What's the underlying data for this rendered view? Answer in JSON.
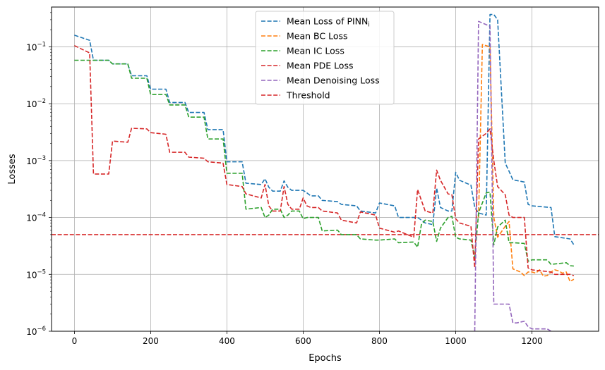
{
  "chart_data": {
    "type": "line",
    "title": "",
    "xlabel": "Epochs",
    "ylabel": "Losses",
    "xlim": [
      -60,
      1375
    ],
    "ylim": [
      1e-06,
      0.5
    ],
    "yscale": "log",
    "grid": true,
    "legend": {
      "placement": "upper-center",
      "entries": [
        {
          "text": "Mean Loss of PINN",
          "subscript": "i"
        },
        {
          "text": "Mean BC Loss",
          "subscript": ""
        },
        {
          "text": "Mean IC Loss",
          "subscript": ""
        },
        {
          "text": "Mean PDE Loss",
          "subscript": ""
        },
        {
          "text": "Mean Denoising Loss",
          "subscript": ""
        },
        {
          "text": "Threshold",
          "subscript": ""
        }
      ]
    },
    "x_ticks": [
      0,
      200,
      400,
      600,
      800,
      1000,
      1200
    ],
    "x_tick_labels": [
      "0",
      "200",
      "400",
      "600",
      "800",
      "1000",
      "1200"
    ],
    "y_ticks": [
      {
        "value": 1e-06,
        "base": "10",
        "exp": "−6"
      },
      {
        "value": 1e-05,
        "base": "10",
        "exp": "−5"
      },
      {
        "value": 0.0001,
        "base": "10",
        "exp": "−4"
      },
      {
        "value": 0.001,
        "base": "10",
        "exp": "−3"
      },
      {
        "value": 0.01,
        "base": "10",
        "exp": "−2"
      },
      {
        "value": 0.1,
        "base": "10",
        "exp": "−1"
      }
    ],
    "series": [
      {
        "name": "Mean Loss of PINN_i",
        "color": "#1f77b4",
        "x": [
          0,
          40,
          50,
          90,
          100,
          140,
          150,
          190,
          200,
          240,
          250,
          290,
          300,
          340,
          350,
          390,
          400,
          440,
          450,
          490,
          500,
          510,
          520,
          540,
          550,
          560,
          570,
          590,
          600,
          610,
          620,
          640,
          650,
          690,
          700,
          740,
          750,
          790,
          800,
          840,
          850,
          890,
          900,
          910,
          920,
          940,
          950,
          960,
          980,
          990,
          1000,
          1010,
          1040,
          1050,
          1060,
          1080,
          1090,
          1100,
          1110,
          1130,
          1140,
          1150,
          1180,
          1190,
          1200,
          1250,
          1260,
          1300,
          1310
        ],
        "y": [
          0.16,
          0.13,
          0.058,
          0.058,
          0.05,
          0.05,
          0.031,
          0.031,
          0.018,
          0.018,
          0.0105,
          0.0105,
          0.007,
          0.007,
          0.0035,
          0.0035,
          0.00095,
          0.00095,
          0.0004,
          0.00038,
          0.00048,
          0.00034,
          0.00029,
          0.00029,
          0.00044,
          0.00034,
          0.0003,
          0.0003,
          0.0003,
          0.00027,
          0.00024,
          0.00024,
          0.0002,
          0.00019,
          0.00017,
          0.00016,
          0.00013,
          0.00012,
          0.00018,
          0.00016,
          0.0001,
          0.0001,
          0.0001,
          9e-05,
          8e-05,
          7.5e-05,
          0.00033,
          0.00015,
          0.00013,
          0.00013,
          0.00062,
          0.00045,
          0.00037,
          0.00015,
          0.00012,
          0.00011,
          0.37,
          0.37,
          0.3,
          0.0009,
          0.00065,
          0.00046,
          0.00042,
          0.00017,
          0.00016,
          0.00015,
          4.6e-05,
          4.2e-05,
          3.3e-05
        ]
      },
      {
        "name": "Mean BC Loss",
        "color": "#ff7f0e",
        "x": [
          1060,
          1070,
          1090,
          1100,
          1110,
          1130,
          1140,
          1150,
          1170,
          1180,
          1190,
          1200,
          1210,
          1220,
          1230,
          1240,
          1250,
          1260,
          1270,
          1280,
          1290,
          1300,
          1310
        ],
        "y": [
          0.0001,
          0.11,
          0.1,
          0.0001,
          4.5e-05,
          7e-05,
          8.5e-05,
          1.25e-05,
          1.1e-05,
          9.5e-06,
          1.1e-05,
          1.1e-05,
          1.05e-05,
          1.2e-05,
          9.3e-06,
          9.5e-06,
          1.1e-05,
          1.2e-05,
          1.15e-05,
          1.05e-05,
          1.1e-05,
          7.5e-06,
          8.2e-06
        ]
      },
      {
        "name": "Mean IC Loss",
        "color": "#2ca02c",
        "x": [
          0,
          40,
          90,
          100,
          140,
          150,
          190,
          200,
          240,
          250,
          290,
          300,
          340,
          350,
          390,
          400,
          440,
          450,
          490,
          500,
          510,
          520,
          540,
          550,
          560,
          570,
          590,
          600,
          610,
          620,
          640,
          650,
          690,
          700,
          740,
          750,
          790,
          800,
          840,
          850,
          890,
          900,
          910,
          920,
          940,
          950,
          960,
          980,
          990,
          1000,
          1010,
          1040,
          1050,
          1060,
          1080,
          1090,
          1100,
          1110,
          1130,
          1140,
          1150,
          1180,
          1190,
          1200,
          1240,
          1250,
          1290,
          1300,
          1310
        ],
        "y": [
          0.058,
          0.058,
          0.058,
          0.05,
          0.05,
          0.028,
          0.028,
          0.0145,
          0.0145,
          0.0095,
          0.0095,
          0.0058,
          0.0058,
          0.0024,
          0.0024,
          0.0006,
          0.0006,
          0.00014,
          0.00015,
          0.0001,
          0.00011,
          0.00014,
          0.00014,
          0.0001,
          0.00011,
          0.00013,
          0.00013,
          9.5e-05,
          0.0001,
          0.0001,
          0.0001,
          5.8e-05,
          6e-05,
          5e-05,
          5e-05,
          4.2e-05,
          4e-05,
          4e-05,
          4.2e-05,
          3.6e-05,
          3.7e-05,
          3e-05,
          7.5e-05,
          9e-05,
          8.5e-05,
          3.8e-05,
          6.5e-05,
          0.0001,
          0.000105,
          4.5e-05,
          4.2e-05,
          4e-05,
          2e-05,
          0.00012,
          0.00027,
          0.00028,
          3.3e-05,
          6.8e-05,
          9e-05,
          3.6e-05,
          3.6e-05,
          3.5e-05,
          1.7e-05,
          1.8e-05,
          1.8e-05,
          1.5e-05,
          1.6e-05,
          1.42e-05,
          1.4e-05
        ]
      },
      {
        "name": "Mean PDE Loss",
        "color": "#d62728",
        "x": [
          0,
          40,
          50,
          90,
          100,
          140,
          150,
          190,
          200,
          240,
          250,
          290,
          300,
          340,
          350,
          390,
          400,
          440,
          450,
          490,
          500,
          510,
          520,
          540,
          550,
          560,
          570,
          590,
          600,
          610,
          620,
          640,
          650,
          690,
          700,
          740,
          750,
          790,
          800,
          840,
          850,
          890,
          900,
          910,
          920,
          940,
          950,
          960,
          980,
          990,
          1000,
          1010,
          1040,
          1050,
          1060,
          1080,
          1090,
          1100,
          1110,
          1130,
          1140,
          1150,
          1180,
          1190,
          1200,
          1250,
          1260,
          1300,
          1310
        ],
        "y": [
          0.105,
          0.078,
          0.00058,
          0.00058,
          0.0022,
          0.0021,
          0.0037,
          0.0036,
          0.0031,
          0.0029,
          0.0014,
          0.0014,
          0.00115,
          0.0011,
          0.00095,
          0.0009,
          0.00038,
          0.00035,
          0.00026,
          0.00022,
          0.00038,
          0.00016,
          0.00013,
          0.00013,
          0.00035,
          0.00017,
          0.00014,
          0.00014,
          0.00022,
          0.00016,
          0.00015,
          0.00015,
          0.00013,
          0.00012,
          9e-05,
          8e-05,
          0.000125,
          0.00011,
          6.5e-05,
          5.5e-05,
          5.8e-05,
          4.5e-05,
          0.00031,
          0.0002,
          0.00013,
          0.00012,
          0.00068,
          0.00045,
          0.00026,
          0.00025,
          9.5e-05,
          8e-05,
          7e-05,
          1.3e-05,
          0.0024,
          0.003,
          0.0036,
          0.001,
          0.00035,
          0.00025,
          0.00011,
          0.0001,
          0.0001,
          1.3e-05,
          1.2e-05,
          1.1e-05,
          1e-05,
          1e-05,
          9.5e-06
        ]
      },
      {
        "name": "Mean Denoising Loss",
        "color": "#9467bd",
        "x": [
          1050,
          1060,
          1090,
          1100,
          1110,
          1140,
          1150,
          1160,
          1180,
          1190,
          1200,
          1240,
          1250
        ],
        "y": [
          1e-06,
          0.28,
          0.23,
          3e-06,
          3e-06,
          3e-06,
          1.4e-06,
          1.4e-06,
          1.5e-06,
          1.2e-06,
          1.1e-06,
          1.1e-06,
          1e-06
        ]
      }
    ],
    "threshold": {
      "name": "Threshold",
      "value": 5e-05,
      "color": "#d62728"
    }
  }
}
